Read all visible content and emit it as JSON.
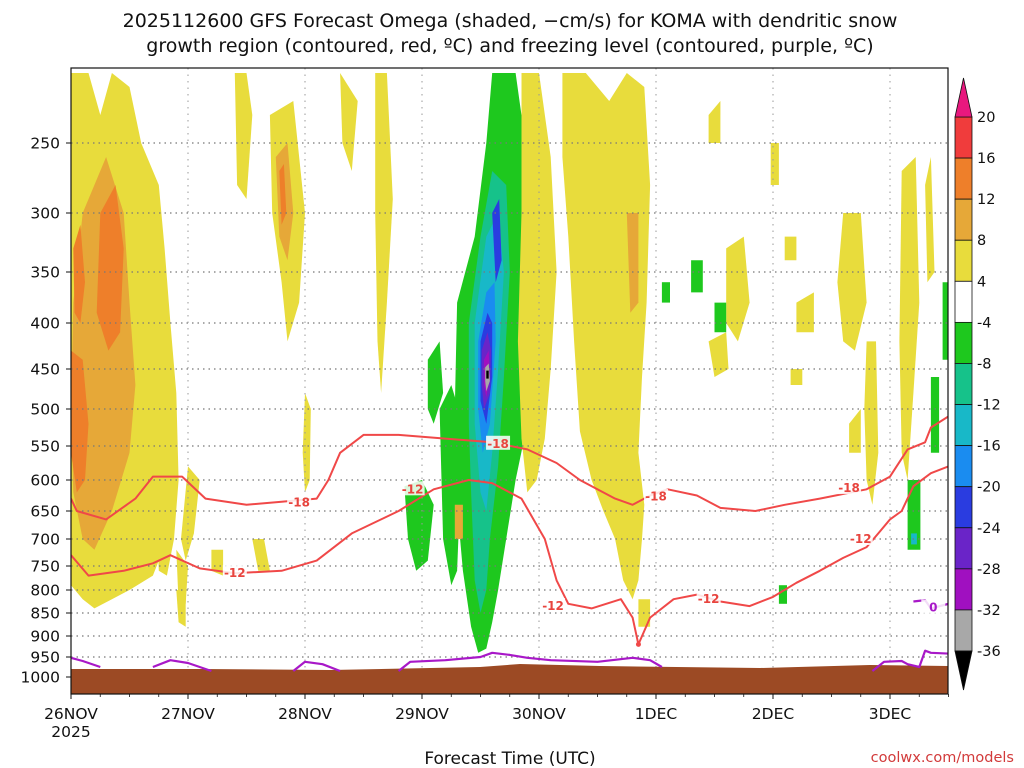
{
  "chart_data": {
    "type": "time-height cross-section",
    "title": [
      "2025112600 GFS Forecast Omega (shaded, −cm/s) for KOMA with dendritic snow",
      "growth region (contoured, red, ºC) and freezing level (contoured, purple, ºC)"
    ],
    "xlabel": "Forecast Time (UTC)",
    "ylabel": "",
    "credit": "coolwx.com/models",
    "x_ticks": [
      {
        "label": "26NOV",
        "sublabel": "2025",
        "day": 0
      },
      {
        "label": "27NOV",
        "sublabel": "",
        "day": 1
      },
      {
        "label": "28NOV",
        "sublabel": "",
        "day": 2
      },
      {
        "label": "29NOV",
        "sublabel": "",
        "day": 3
      },
      {
        "label": "30NOV",
        "sublabel": "",
        "day": 4
      },
      {
        "label": "1DEC",
        "sublabel": "",
        "day": 5
      },
      {
        "label": "2DEC",
        "sublabel": "",
        "day": 6
      },
      {
        "label": "3DEC",
        "sublabel": "",
        "day": 7
      }
    ],
    "xlim_days": [
      0,
      7.5
    ],
    "y_ticks": [
      "250",
      "300",
      "350",
      "400",
      "450",
      "500",
      "550",
      "600",
      "650",
      "700",
      "750",
      "800",
      "850",
      "900",
      "950",
      "1000"
    ],
    "ylim_hpa": [
      200,
      1000
    ],
    "colorbar": {
      "labels": [
        "20",
        "16",
        "12",
        "8",
        "4",
        "-4",
        "-8",
        "-12",
        "-16",
        "-20",
        "-24",
        "-28",
        "-32",
        "-36"
      ],
      "bins": [
        {
          "range": "16 to 20",
          "color": "#f03c3c"
        },
        {
          "range": "12 to 16",
          "color": "#ee7f2a"
        },
        {
          "range": "8 to 12",
          "color": "#e6a838"
        },
        {
          "range": "4 to 8",
          "color": "#e8dc3c"
        },
        {
          "range": "-4 to 4",
          "color": "#ffffff"
        },
        {
          "range": "-8 to -4",
          "color": "#1ec81e"
        },
        {
          "range": "-12 to -8",
          "color": "#16c28a"
        },
        {
          "range": "-16 to -12",
          "color": "#18b8c8"
        },
        {
          "range": "-20 to -16",
          "color": "#1a8cf0"
        },
        {
          "range": "-24 to -20",
          "color": "#2a3ce0"
        },
        {
          "range": "-28 to -24",
          "color": "#6a24c8"
        },
        {
          "range": "-32 to -28",
          "color": "#a010c0"
        },
        {
          "range": "-36 to -32",
          "color": "#a8a8a8"
        }
      ],
      "over_color": "#e8187e",
      "under_color": "#000000"
    },
    "contours": {
      "dgz_minus18": {
        "color": "#f04848",
        "labels": [
          "-18",
          "-18",
          "-18",
          "-18"
        ],
        "points": [
          [
            0,
            630
          ],
          [
            0.05,
            650
          ],
          [
            0.3,
            665
          ],
          [
            0.55,
            630
          ],
          [
            0.7,
            595
          ],
          [
            0.95,
            595
          ],
          [
            1.15,
            630
          ],
          [
            1.5,
            640
          ],
          [
            1.8,
            635
          ],
          [
            2.1,
            630
          ],
          [
            2.2,
            600
          ],
          [
            2.3,
            560
          ],
          [
            2.5,
            535
          ],
          [
            2.8,
            535
          ],
          [
            3.2,
            540
          ],
          [
            3.6,
            545
          ],
          [
            3.9,
            555
          ],
          [
            4.15,
            575
          ],
          [
            4.35,
            600
          ],
          [
            4.65,
            630
          ],
          [
            4.8,
            640
          ],
          [
            4.95,
            625
          ],
          [
            5.1,
            615
          ],
          [
            5.35,
            625
          ],
          [
            5.55,
            645
          ],
          [
            5.85,
            650
          ],
          [
            6.1,
            640
          ],
          [
            6.4,
            630
          ],
          [
            6.8,
            615
          ],
          [
            7.0,
            595
          ],
          [
            7.15,
            555
          ],
          [
            7.3,
            545
          ],
          [
            7.35,
            525
          ],
          [
            7.5,
            510
          ]
        ]
      },
      "dgz_minus12": {
        "color": "#f04848",
        "labels": [
          "-12",
          "-12",
          "-12",
          "-12",
          "-12"
        ],
        "points": [
          [
            0,
            730
          ],
          [
            0.15,
            770
          ],
          [
            0.45,
            760
          ],
          [
            0.7,
            745
          ],
          [
            0.85,
            730
          ],
          [
            1.1,
            755
          ],
          [
            1.4,
            765
          ],
          [
            1.8,
            760
          ],
          [
            2.1,
            740
          ],
          [
            2.4,
            690
          ],
          [
            2.8,
            650
          ],
          [
            3.1,
            615
          ],
          [
            3.4,
            600
          ],
          [
            3.6,
            605
          ],
          [
            3.85,
            630
          ],
          [
            4.05,
            700
          ],
          [
            4.15,
            780
          ],
          [
            4.25,
            830
          ],
          [
            4.45,
            840
          ],
          [
            4.7,
            820
          ],
          [
            4.8,
            860
          ],
          [
            4.85,
            920
          ],
          [
            4.95,
            860
          ],
          [
            5.15,
            820
          ],
          [
            5.35,
            810
          ],
          [
            5.55,
            825
          ],
          [
            5.8,
            835
          ],
          [
            6.0,
            815
          ],
          [
            6.2,
            785
          ],
          [
            6.4,
            760
          ],
          [
            6.6,
            735
          ],
          [
            6.8,
            715
          ],
          [
            6.9,
            690
          ],
          [
            7.0,
            665
          ],
          [
            7.1,
            650
          ],
          [
            7.2,
            610
          ],
          [
            7.35,
            590
          ],
          [
            7.5,
            580
          ]
        ]
      },
      "freezing_0": {
        "color": "#a818c8",
        "labels": [
          "0"
        ],
        "segments": [
          [
            [
              0,
              952
            ],
            [
              0.1,
              960
            ],
            [
              0.25,
              975
            ]
          ],
          [
            [
              0.7,
              975
            ],
            [
              0.85,
              958
            ],
            [
              1.0,
              965
            ],
            [
              1.2,
              985
            ]
          ],
          [
            [
              1.9,
              985
            ],
            [
              2.0,
              962
            ],
            [
              2.15,
              968
            ],
            [
              2.3,
              985
            ]
          ],
          [
            [
              2.8,
              985
            ],
            [
              2.9,
              962
            ],
            [
              3.2,
              958
            ],
            [
              3.5,
              950
            ],
            [
              3.6,
              940
            ],
            [
              3.75,
              945
            ],
            [
              3.9,
              952
            ],
            [
              4.1,
              958
            ],
            [
              4.5,
              962
            ],
            [
              4.8,
              952
            ],
            [
              4.95,
              958
            ],
            [
              5.05,
              975
            ]
          ],
          [
            [
              6.85,
              985
            ],
            [
              6.95,
              962
            ],
            [
              7.1,
              960
            ],
            [
              7.15,
              968
            ],
            [
              7.25,
              975
            ],
            [
              7.3,
              935
            ],
            [
              7.35,
              940
            ],
            [
              7.5,
              942
            ]
          ],
          [
            [
              7.2,
              825
            ],
            [
              7.3,
              822
            ],
            [
              7.35,
              840
            ],
            [
              7.5,
              830
            ]
          ]
        ]
      }
    },
    "omega_regions": [
      {
        "band": "4 to 8",
        "note": "broad ascent 26NOV-27NOV, 250-820 hPa"
      },
      {
        "band": "8 to 12",
        "note": "26NOV 300-720 hPa"
      },
      {
        "band": "12 to 16",
        "note": "26NOV-27NOV 280-450 hPa"
      },
      {
        "band": "-8 to -4",
        "note": "29NOV-30NOV 250-950 hPa"
      },
      {
        "band": "-36 to -32",
        "note": "29NOV ~450 hPa core"
      },
      {
        "band": "4 to 8",
        "note": "30NOV-1DEC 200-870 hPa"
      },
      {
        "band": "4 to 8",
        "note": "3DEC 300-640 hPa"
      }
    ]
  }
}
